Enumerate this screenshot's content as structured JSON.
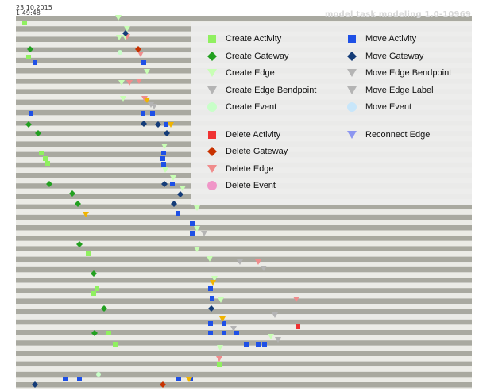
{
  "header": {
    "date": "23.10.2015",
    "time": "1:49:48",
    "title": "model task modeling 1.0-10969"
  },
  "legend": {
    "items": [
      {
        "label": "Create Activity",
        "shape": "square",
        "color": "#90f060"
      },
      {
        "label": "Create Gateway",
        "shape": "diamond",
        "color": "#22a020"
      },
      {
        "label": "Create Edge",
        "shape": "triangle",
        "color": "#c8ffb4"
      },
      {
        "label": "Create Edge Bendpoint",
        "shape": "triangle",
        "color": "#b4b4b4"
      },
      {
        "label": "Create Event",
        "shape": "circle",
        "color": "#c8ffc8"
      },
      {
        "label": "Delete Activity",
        "shape": "square",
        "color": "#f03232"
      },
      {
        "label": "Delete Gateway",
        "shape": "diamond",
        "color": "#c83200"
      },
      {
        "label": "Delete Edge",
        "shape": "triangle",
        "color": "#f08c8c"
      },
      {
        "label": "Delete Event",
        "shape": "circle",
        "color": "#f096c8"
      },
      {
        "label": "Move Activity",
        "shape": "square",
        "color": "#1e50e6"
      },
      {
        "label": "Move Gateway",
        "shape": "diamond",
        "color": "#143c78"
      },
      {
        "label": "Move Edge Bendpoint",
        "shape": "triangle",
        "color": "#b4b4b4"
      },
      {
        "label": "Move Edge Label",
        "shape": "triangle",
        "color": "#b4b4b4"
      },
      {
        "label": "Move Event",
        "shape": "circle",
        "color": "#c8e6fa"
      },
      {
        "label": "Reconnect Edge",
        "shape": "triangle",
        "color": "#8c96f0"
      }
    ]
  },
  "chart_data": {
    "type": "scatter",
    "title": "",
    "xlabel": "",
    "ylabel": "",
    "grid": "alternating-row-stripes",
    "legend_position": "top-right",
    "x_axis": {
      "ticks": []
    },
    "y_axis": {
      "ticks": []
    },
    "colors": {
      "stripe_dark": "#a9a9a0",
      "stripe_light": "#ebebe6",
      "Create Activity": "#90f060",
      "Create Gateway": "#22a020",
      "Create Edge": "#c8ffb4",
      "Create Edge Bendpoint": "#b4b4b4",
      "Create Event": "#c8ffc8",
      "Delete Activity": "#f03232",
      "Delete Gateway": "#c83200",
      "Delete Edge": "#f08c8c",
      "Delete Event": "#f096c8",
      "Move Activity": "#1e50e6",
      "Move Gateway": "#143c78",
      "Move Edge Bendpoint": "#b4b4b4",
      "Move Edge Label": "#b4b4b4",
      "Move Event": "#c8e6fa",
      "Reconnect Edge": "#8c96f0",
      "Other Marker": "#f0b400"
    },
    "series": [
      {
        "name": "Create Activity",
        "points": [
          [
            31,
            29
          ],
          [
            36,
            72
          ],
          [
            52,
            193
          ],
          [
            57,
            200
          ],
          [
            60,
            206
          ],
          [
            111,
            320
          ],
          [
            122,
            364
          ],
          [
            118,
            370
          ],
          [
            137,
            420
          ],
          [
            145,
            434
          ],
          [
            276,
            460
          ]
        ]
      },
      {
        "name": "Create Gateway",
        "points": [
          [
            38,
            62
          ],
          [
            36,
            157
          ],
          [
            48,
            168
          ],
          [
            62,
            232
          ],
          [
            91,
            244
          ],
          [
            98,
            257
          ],
          [
            100,
            308
          ],
          [
            118,
            345
          ],
          [
            131,
            389
          ],
          [
            119,
            420
          ]
        ]
      },
      {
        "name": "Create Edge",
        "points": [
          [
            149,
            22
          ],
          [
            160,
            36
          ],
          [
            150,
            47
          ],
          [
            158,
            47
          ],
          [
            185,
            90
          ],
          [
            153,
            104
          ],
          [
            155,
            124
          ],
          [
            207,
            184
          ],
          [
            208,
            214
          ],
          [
            218,
            224
          ],
          [
            230,
            237
          ],
          [
            248,
            262
          ],
          [
            248,
            288
          ],
          [
            248,
            314
          ],
          [
            264,
            326
          ],
          [
            270,
            351
          ],
          [
            278,
            378
          ],
          [
            341,
            424
          ],
          [
            277,
            438
          ]
        ]
      },
      {
        "name": "Create Edge Bendpoint",
        "points": [
          [
            190,
            132
          ],
          [
            257,
            294
          ],
          [
            302,
            330
          ],
          [
            332,
            338
          ]
        ]
      },
      {
        "name": "Create Event",
        "points": [
          [
            151,
            66
          ],
          [
            124,
            472
          ]
        ]
      },
      {
        "name": "Delete Activity",
        "points": [
          [
            180,
            79
          ],
          [
            375,
            412
          ]
        ]
      },
      {
        "name": "Delete Gateway",
        "points": [
          [
            174,
            62
          ],
          [
            205,
            485
          ]
        ]
      },
      {
        "name": "Delete Edge",
        "points": [
          [
            160,
            46
          ],
          [
            177,
            68
          ],
          [
            175,
            102
          ],
          [
            163,
            104
          ],
          [
            182,
            124
          ],
          [
            325,
            330
          ],
          [
            373,
            377
          ],
          [
            276,
            452
          ]
        ]
      },
      {
        "name": "Move Activity",
        "points": [
          [
            39,
            143
          ],
          [
            44,
            79
          ],
          [
            181,
            79
          ],
          [
            180,
            143
          ],
          [
            192,
            143
          ],
          [
            209,
            157
          ],
          [
            206,
            193
          ],
          [
            205,
            200
          ],
          [
            206,
            207
          ],
          [
            217,
            232
          ],
          [
            224,
            269
          ],
          [
            242,
            282
          ],
          [
            242,
            294
          ],
          [
            265,
            364
          ],
          [
            267,
            376
          ],
          [
            265,
            408
          ],
          [
            282,
            408
          ],
          [
            265,
            420
          ],
          [
            282,
            420
          ],
          [
            298,
            420
          ],
          [
            310,
            434
          ],
          [
            325,
            434
          ],
          [
            333,
            434
          ],
          [
            82,
            478
          ],
          [
            100,
            478
          ],
          [
            225,
            478
          ],
          [
            240,
            478
          ]
        ]
      },
      {
        "name": "Move Gateway",
        "points": [
          [
            158,
            42
          ],
          [
            181,
            156
          ],
          [
            199,
            157
          ],
          [
            210,
            168
          ],
          [
            207,
            232
          ],
          [
            227,
            245
          ],
          [
            219,
            257
          ],
          [
            266,
            389
          ],
          [
            44,
            485
          ]
        ]
      },
      {
        "name": "Move Edge Label",
        "points": [
          [
            194,
            134
          ],
          [
            346,
            397
          ]
        ]
      },
      {
        "name": "Move Edge Bendpoint",
        "points": [
          [
            294,
            414
          ],
          [
            350,
            428
          ]
        ]
      },
      {
        "name": "Other Marker",
        "points": [
          [
            185,
            126
          ],
          [
            215,
            157
          ],
          [
            108,
            270
          ],
          [
            280,
            402
          ],
          [
            268,
            356
          ],
          [
            238,
            478
          ]
        ]
      }
    ]
  }
}
